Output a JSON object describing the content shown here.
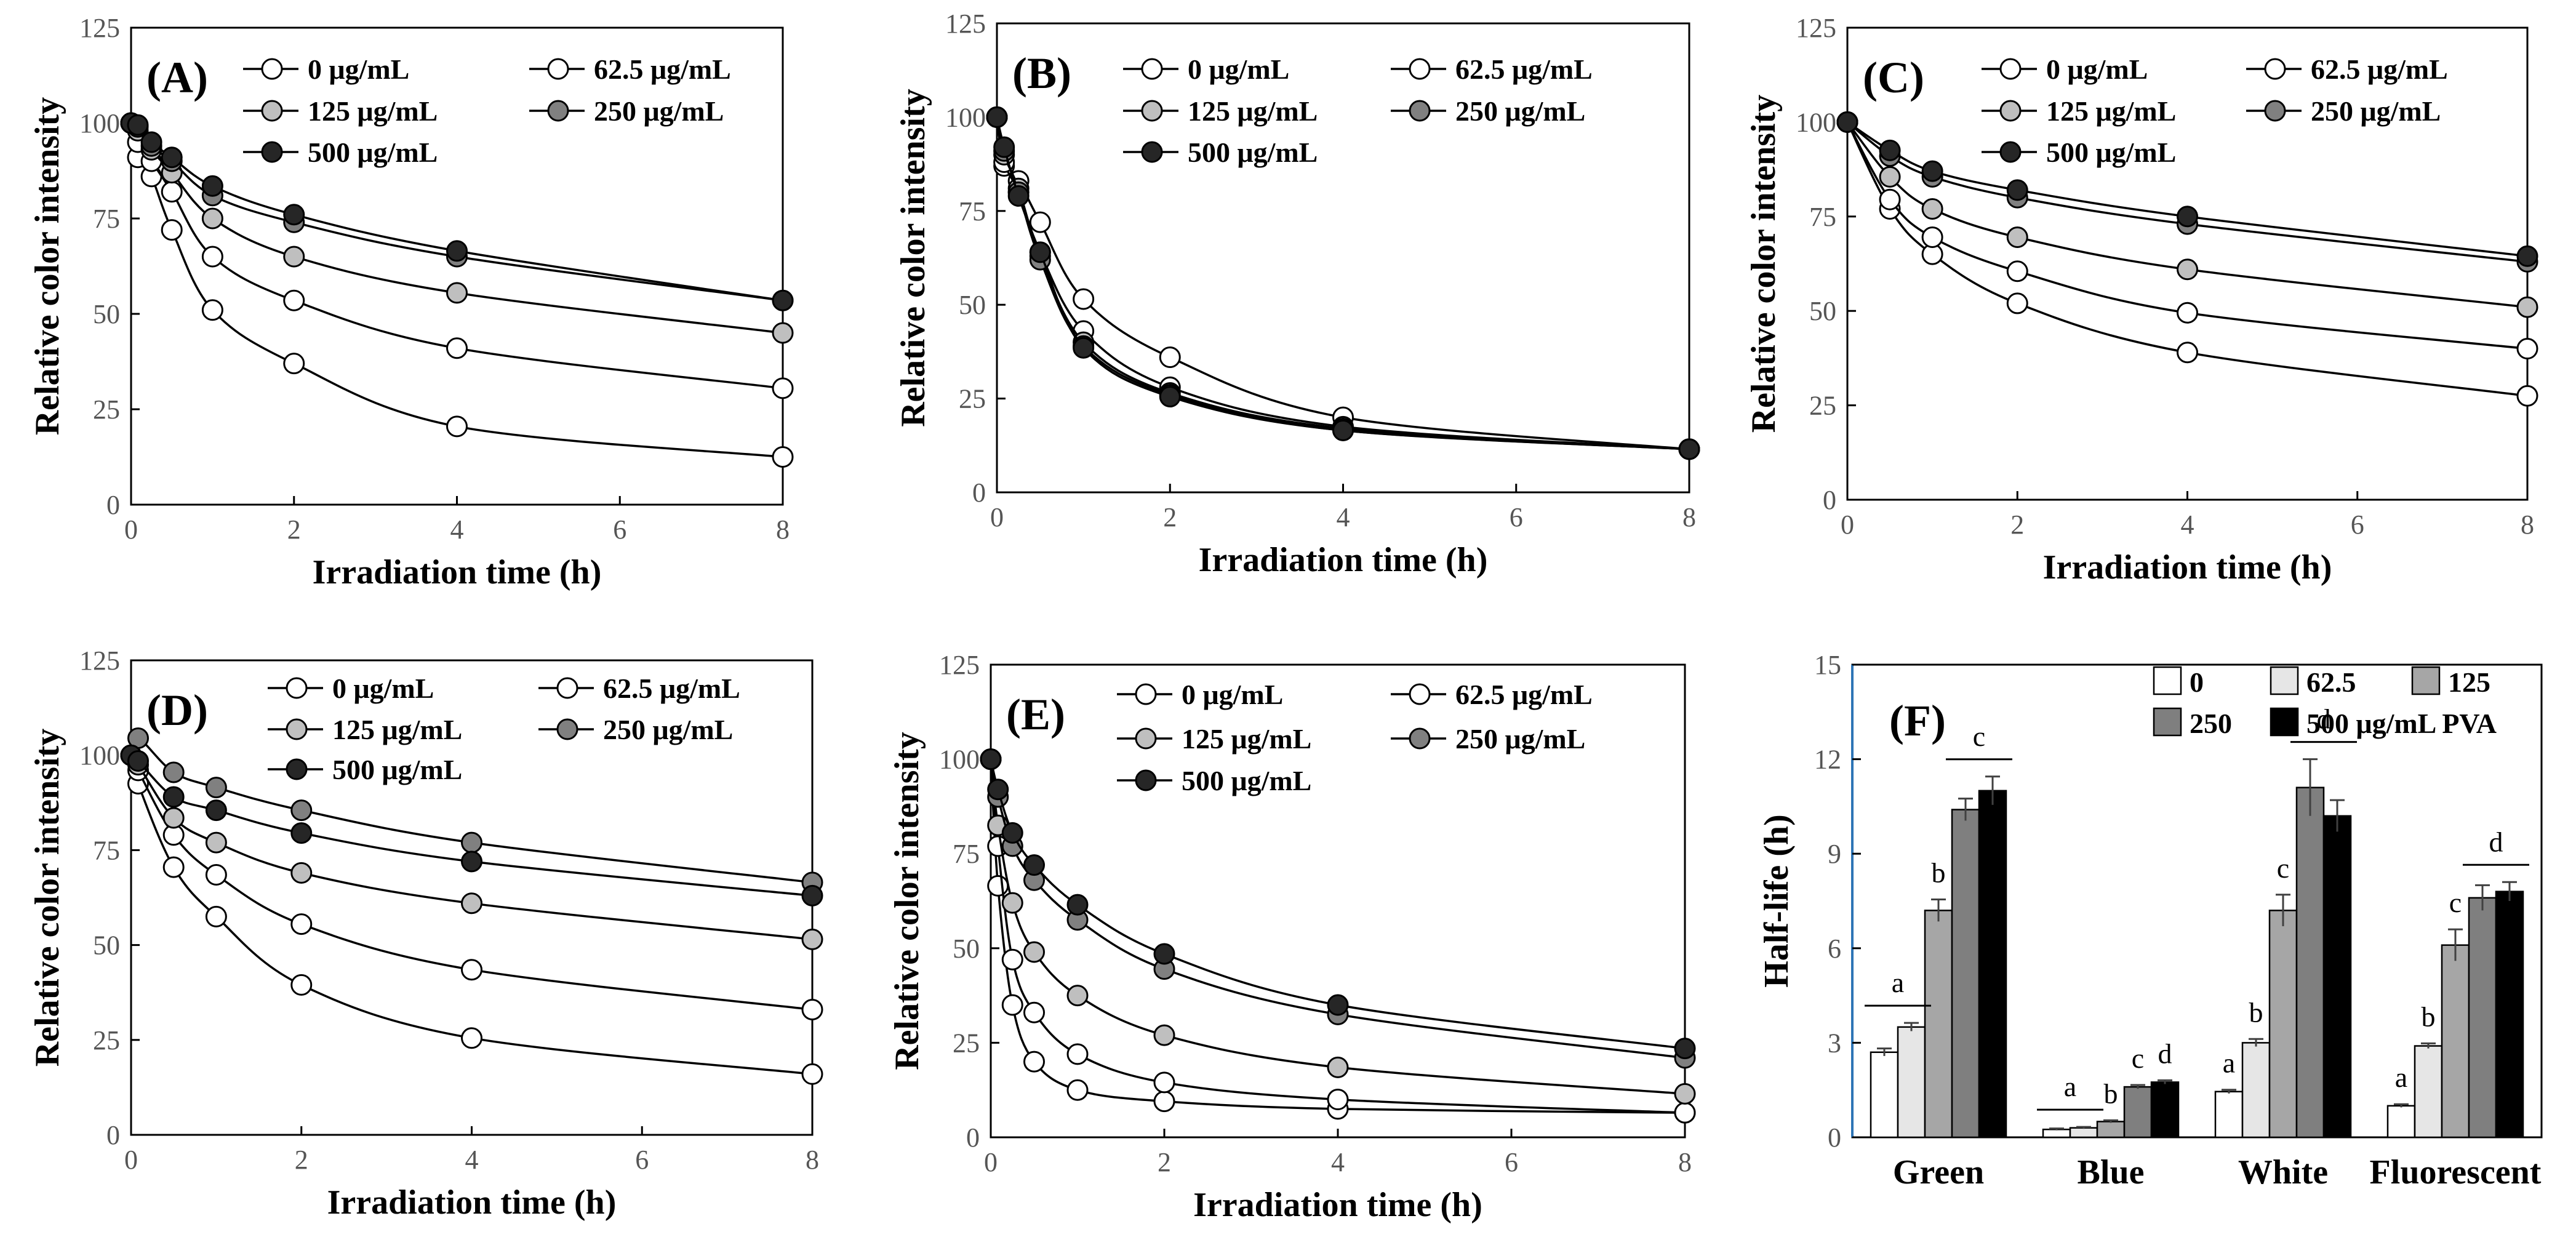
{
  "figure": {
    "concentration_legend": [
      "0 μg/mL",
      "62.5 μg/mL",
      "125 μg/mL",
      "250 μg/mL",
      "500 μg/mL"
    ],
    "series_colors": [
      "#ffffff",
      "#ffffff",
      "#bfbfbf",
      "#808080",
      "#262626"
    ]
  },
  "chart_data": [
    {
      "panel": "(A)",
      "type": "line",
      "xlabel": "Irradiation time (h)",
      "ylabel": "Relative color intensity",
      "xlim": [
        0,
        8
      ],
      "xticks": [
        "0",
        "2",
        "4",
        "6",
        "8"
      ],
      "ylim": [
        0,
        125
      ],
      "yticks": [
        "0",
        "25",
        "50",
        "75",
        "100",
        "125"
      ],
      "x": [
        0,
        0.083,
        0.25,
        0.5,
        1,
        2,
        4,
        8
      ],
      "series": [
        {
          "name": "0 μg/mL",
          "values": [
            100,
            91,
            86,
            72,
            51,
            37,
            20.5,
            12.5
          ]
        },
        {
          "name": "62.5 μg/mL",
          "values": [
            100,
            95,
            90,
            82,
            65,
            53.5,
            41,
            30.5
          ]
        },
        {
          "name": "125 μg/mL",
          "values": [
            100,
            98,
            93,
            87,
            75,
            65,
            55.5,
            45
          ]
        },
        {
          "name": "250 μg/mL",
          "values": [
            100,
            99,
            94,
            90,
            81,
            74,
            65,
            53.5
          ]
        },
        {
          "name": "500 μg/mL",
          "values": [
            100,
            99.5,
            95,
            91,
            83.5,
            76,
            66.5,
            53.5
          ]
        }
      ]
    },
    {
      "panel": "(B)",
      "type": "line",
      "xlabel": "Irradiation  time (h)",
      "ylabel": "Relative color intensity",
      "xlim": [
        0,
        8
      ],
      "xticks": [
        "0",
        "2",
        "4",
        "6",
        "8"
      ],
      "ylim": [
        0,
        125
      ],
      "yticks": [
        "0",
        "25",
        "50",
        "75",
        "100",
        "125"
      ],
      "x": [
        0,
        0.083,
        0.25,
        0.5,
        1,
        2,
        4,
        8
      ],
      "series": [
        {
          "name": "0 μg/mL",
          "values": [
            100,
            87,
            83,
            72,
            51.5,
            36,
            20,
            11.5
          ]
        },
        {
          "name": "62.5 μg/mL",
          "values": [
            100,
            88,
            80,
            64,
            43,
            28,
            17.5,
            11.5
          ]
        },
        {
          "name": "125 μg/mL",
          "values": [
            100,
            90,
            81,
            63,
            40,
            26.5,
            17,
            11.5
          ]
        },
        {
          "name": "250 μg/mL",
          "values": [
            100,
            91,
            80,
            62,
            39,
            26,
            16.5,
            11.5
          ]
        },
        {
          "name": "500 μg/mL",
          "values": [
            100,
            92,
            79,
            64,
            38.5,
            25.5,
            16.5,
            11.5
          ]
        }
      ]
    },
    {
      "panel": "(C)",
      "type": "line",
      "xlabel": "Irradiation time (h)",
      "ylabel": "Relative color intensity",
      "xlim": [
        0,
        8
      ],
      "xticks": [
        "0",
        "2",
        "4",
        "6",
        "8"
      ],
      "ylim": [
        0,
        125
      ],
      "yticks": [
        "0",
        "25",
        "50",
        "75",
        "100",
        "125"
      ],
      "x": [
        0,
        0.5,
        1,
        2,
        4,
        8
      ],
      "series": [
        {
          "name": "0 μg/mL",
          "values": [
            100,
            77,
            65,
            52,
            39,
            27.5
          ]
        },
        {
          "name": "62.5 μg/mL",
          "values": [
            100,
            79.5,
            69.5,
            60.5,
            49.5,
            40
          ]
        },
        {
          "name": "125 μg/mL",
          "values": [
            100,
            85.5,
            77,
            69.5,
            61,
            51
          ]
        },
        {
          "name": "250 μg/mL",
          "values": [
            100,
            91,
            85.5,
            80,
            73,
            63
          ]
        },
        {
          "name": "500 μg/mL",
          "values": [
            100,
            92.5,
            87,
            82,
            75,
            64.5
          ]
        }
      ]
    },
    {
      "panel": "(D)",
      "type": "line",
      "xlabel": "Irradiation time (h)",
      "ylabel": "Relative color intensity",
      "xlim": [
        0,
        8
      ],
      "xticks": [
        "0",
        "2",
        "4",
        "6",
        "8"
      ],
      "ylim": [
        0,
        125
      ],
      "yticks": [
        "0",
        "25",
        "50",
        "75",
        "100",
        "125"
      ],
      "x": [
        0,
        0.083,
        0.5,
        1,
        2,
        4,
        8
      ],
      "series": [
        {
          "name": "0 μg/mL",
          "values": [
            100,
            92.5,
            70.5,
            57.5,
            39.5,
            25.5,
            16
          ]
        },
        {
          "name": "62.5 μg/mL",
          "values": [
            100,
            96,
            79,
            68.5,
            55.5,
            43.5,
            33
          ]
        },
        {
          "name": "125 μg/mL",
          "values": [
            100,
            97.5,
            83.5,
            77,
            69,
            61,
            51.5
          ]
        },
        {
          "name": "250 μg/mL",
          "values": [
            100,
            104.5,
            95.5,
            91.5,
            85.5,
            77,
            66.5
          ]
        },
        {
          "name": "500 μg/mL",
          "values": [
            100,
            98.5,
            89,
            85.5,
            79.5,
            72,
            63
          ]
        }
      ]
    },
    {
      "panel": "(E)",
      "type": "line",
      "xlabel": "Irradiation time (h)",
      "ylabel": "Relative color intensity",
      "xlim": [
        0,
        8
      ],
      "xticks": [
        "0",
        "2",
        "4",
        "6",
        "8"
      ],
      "ylim": [
        0,
        125
      ],
      "yticks": [
        "0",
        "25",
        "50",
        "75",
        "100",
        "125"
      ],
      "x": [
        0,
        0.083,
        0.25,
        0.5,
        1,
        2,
        4,
        8
      ],
      "series": [
        {
          "name": "0 μg/mL",
          "values": [
            100,
            66.5,
            35,
            20,
            12.5,
            9.5,
            7.5,
            6.5
          ]
        },
        {
          "name": "62.5 μg/mL",
          "values": [
            100,
            77,
            47,
            33,
            22,
            14.5,
            10,
            6.5
          ]
        },
        {
          "name": "125 μg/mL",
          "values": [
            100,
            82.5,
            62,
            49,
            37.5,
            27,
            18.5,
            11.5
          ]
        },
        {
          "name": "250 μg/mL",
          "values": [
            100,
            90,
            77,
            68,
            57.5,
            44.5,
            32.5,
            21
          ]
        },
        {
          "name": "500 μg/mL",
          "values": [
            100,
            92,
            80.5,
            72,
            61.5,
            48.5,
            35,
            23.5
          ]
        }
      ]
    },
    {
      "panel": "(F)",
      "type": "bar",
      "ylabel": "Half-life (h)",
      "ylim": [
        0,
        15
      ],
      "yticks": [
        "0",
        "3",
        "6",
        "9",
        "12",
        "15"
      ],
      "categories": [
        "Green",
        "Blue",
        "White",
        "Fluorescent"
      ],
      "legend": [
        "0",
        "62.5",
        "125",
        "250",
        "500 μg/mL PVA"
      ],
      "series": [
        {
          "name": "0",
          "values": [
            2.7,
            0.25,
            1.45,
            1.0
          ],
          "errors": [
            0.12,
            0.03,
            0.06,
            0.05
          ]
        },
        {
          "name": "62.5",
          "values": [
            3.5,
            0.3,
            3.0,
            2.9
          ],
          "errors": [
            0.13,
            0.03,
            0.12,
            0.08
          ]
        },
        {
          "name": "125",
          "values": [
            7.2,
            0.5,
            7.2,
            6.1
          ],
          "errors": [
            0.35,
            0.04,
            0.5,
            0.5
          ]
        },
        {
          "name": "250",
          "values": [
            10.4,
            1.6,
            11.1,
            7.6
          ],
          "errors": [
            0.35,
            0.06,
            0.9,
            0.4
          ]
        },
        {
          "name": "500 μg/mL PVA",
          "values": [
            11.0,
            1.75,
            10.2,
            7.8
          ],
          "errors": [
            0.45,
            0.06,
            0.5,
            0.3
          ]
        }
      ],
      "annotations": [
        {
          "category": "Green",
          "series_from": 0,
          "series_to": 1,
          "label": "a"
        },
        {
          "category": "Green",
          "series_from": 2,
          "series_to": 2,
          "label": "b"
        },
        {
          "category": "Green",
          "series_from": 3,
          "series_to": 4,
          "label": "c"
        },
        {
          "category": "Blue",
          "series_from": 0,
          "series_to": 1,
          "label": "a"
        },
        {
          "category": "Blue",
          "series_from": 2,
          "series_to": 2,
          "label": "b"
        },
        {
          "category": "Blue",
          "series_from": 3,
          "series_to": 3,
          "label": "c"
        },
        {
          "category": "Blue",
          "series_from": 4,
          "series_to": 4,
          "label": "d"
        },
        {
          "category": "White",
          "series_from": 0,
          "series_to": 0,
          "label": "a"
        },
        {
          "category": "White",
          "series_from": 1,
          "series_to": 1,
          "label": "b"
        },
        {
          "category": "White",
          "series_from": 2,
          "series_to": 2,
          "label": "c"
        },
        {
          "category": "White",
          "series_from": 3,
          "series_to": 4,
          "label": "d"
        },
        {
          "category": "Fluorescent",
          "series_from": 0,
          "series_to": 0,
          "label": "a"
        },
        {
          "category": "Fluorescent",
          "series_from": 1,
          "series_to": 1,
          "label": "b"
        },
        {
          "category": "Fluorescent",
          "series_from": 2,
          "series_to": 2,
          "label": "c"
        },
        {
          "category": "Fluorescent",
          "series_from": 3,
          "series_to": 4,
          "label": "d"
        }
      ]
    }
  ]
}
